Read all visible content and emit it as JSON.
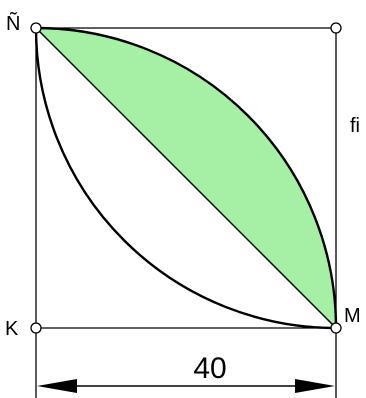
{
  "diagram": {
    "labels": {
      "top_left": "Ñ",
      "bottom_left": "K",
      "bottom_right": "M",
      "right_side": "fi"
    },
    "dimension": {
      "value": "40"
    },
    "colors": {
      "stroke": "#000000",
      "shaded_region": "#a6f0a6",
      "background": "#ffffff",
      "vertex_fill": "#ffffff"
    }
  }
}
